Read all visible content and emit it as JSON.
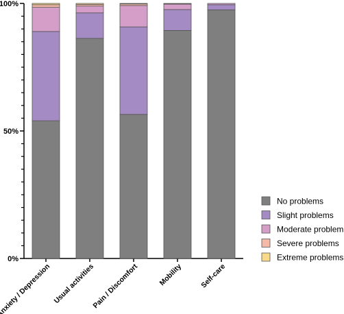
{
  "chart_data": {
    "type": "bar",
    "stacked": true,
    "categories": [
      "Anxiety / Depression",
      "Usual activities",
      "Pain / Discomfort",
      "Mobility",
      "Self-care"
    ],
    "series": [
      {
        "name": "No problems",
        "color": "#7f7f7f",
        "values": [
          54,
          86.3,
          56.5,
          89.4,
          97.5
        ]
      },
      {
        "name": "Slight problems",
        "color": "#a58bc4",
        "values": [
          35,
          10,
          34.3,
          8.2,
          2
        ]
      },
      {
        "name": "Moderate problems",
        "color": "#d49ec8",
        "values": [
          9.5,
          2.7,
          8.4,
          2.1,
          0.5
        ]
      },
      {
        "name": "Severe problems",
        "color": "#f4b9a7",
        "values": [
          1.0,
          0.6,
          0.6,
          0.2,
          0
        ]
      },
      {
        "name": "Extreme problems",
        "color": "#f8d98a",
        "values": [
          0.5,
          0.4,
          0.2,
          0.1,
          0
        ]
      }
    ],
    "ylim": [
      0,
      100
    ],
    "yticks": [
      {
        "value": 0,
        "label": "0%"
      },
      {
        "value": 50,
        "label": "50%"
      },
      {
        "value": 100,
        "label": "100%"
      }
    ],
    "ylabel": "",
    "xlabel": "",
    "grid": false,
    "legend_position": "right"
  }
}
